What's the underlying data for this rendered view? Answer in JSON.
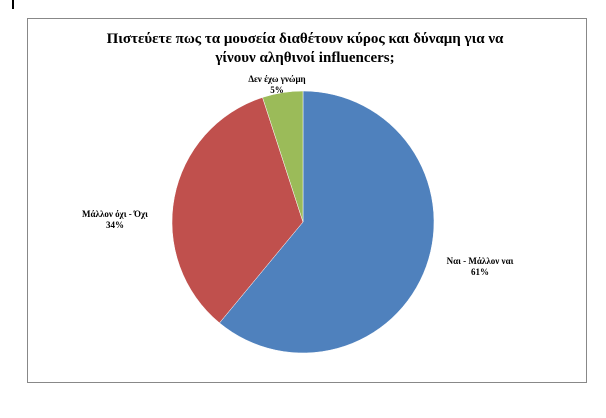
{
  "chart_data": {
    "type": "pie",
    "title": "Πιστεύετε πως τα μουσεία διαθέτουν κύρος και δύναμη για να γίνουν αληθινοί influencers;",
    "categories": [
      "Ναι - Μάλλον ναι",
      "Μάλλον όχι - Όχι",
      "Δεν έχω γνώμη"
    ],
    "values": [
      61,
      34,
      5
    ],
    "value_labels": [
      "61%",
      "34%",
      "5%"
    ],
    "colors": [
      "#4f81bd",
      "#c0504d",
      "#9bbb59"
    ]
  }
}
